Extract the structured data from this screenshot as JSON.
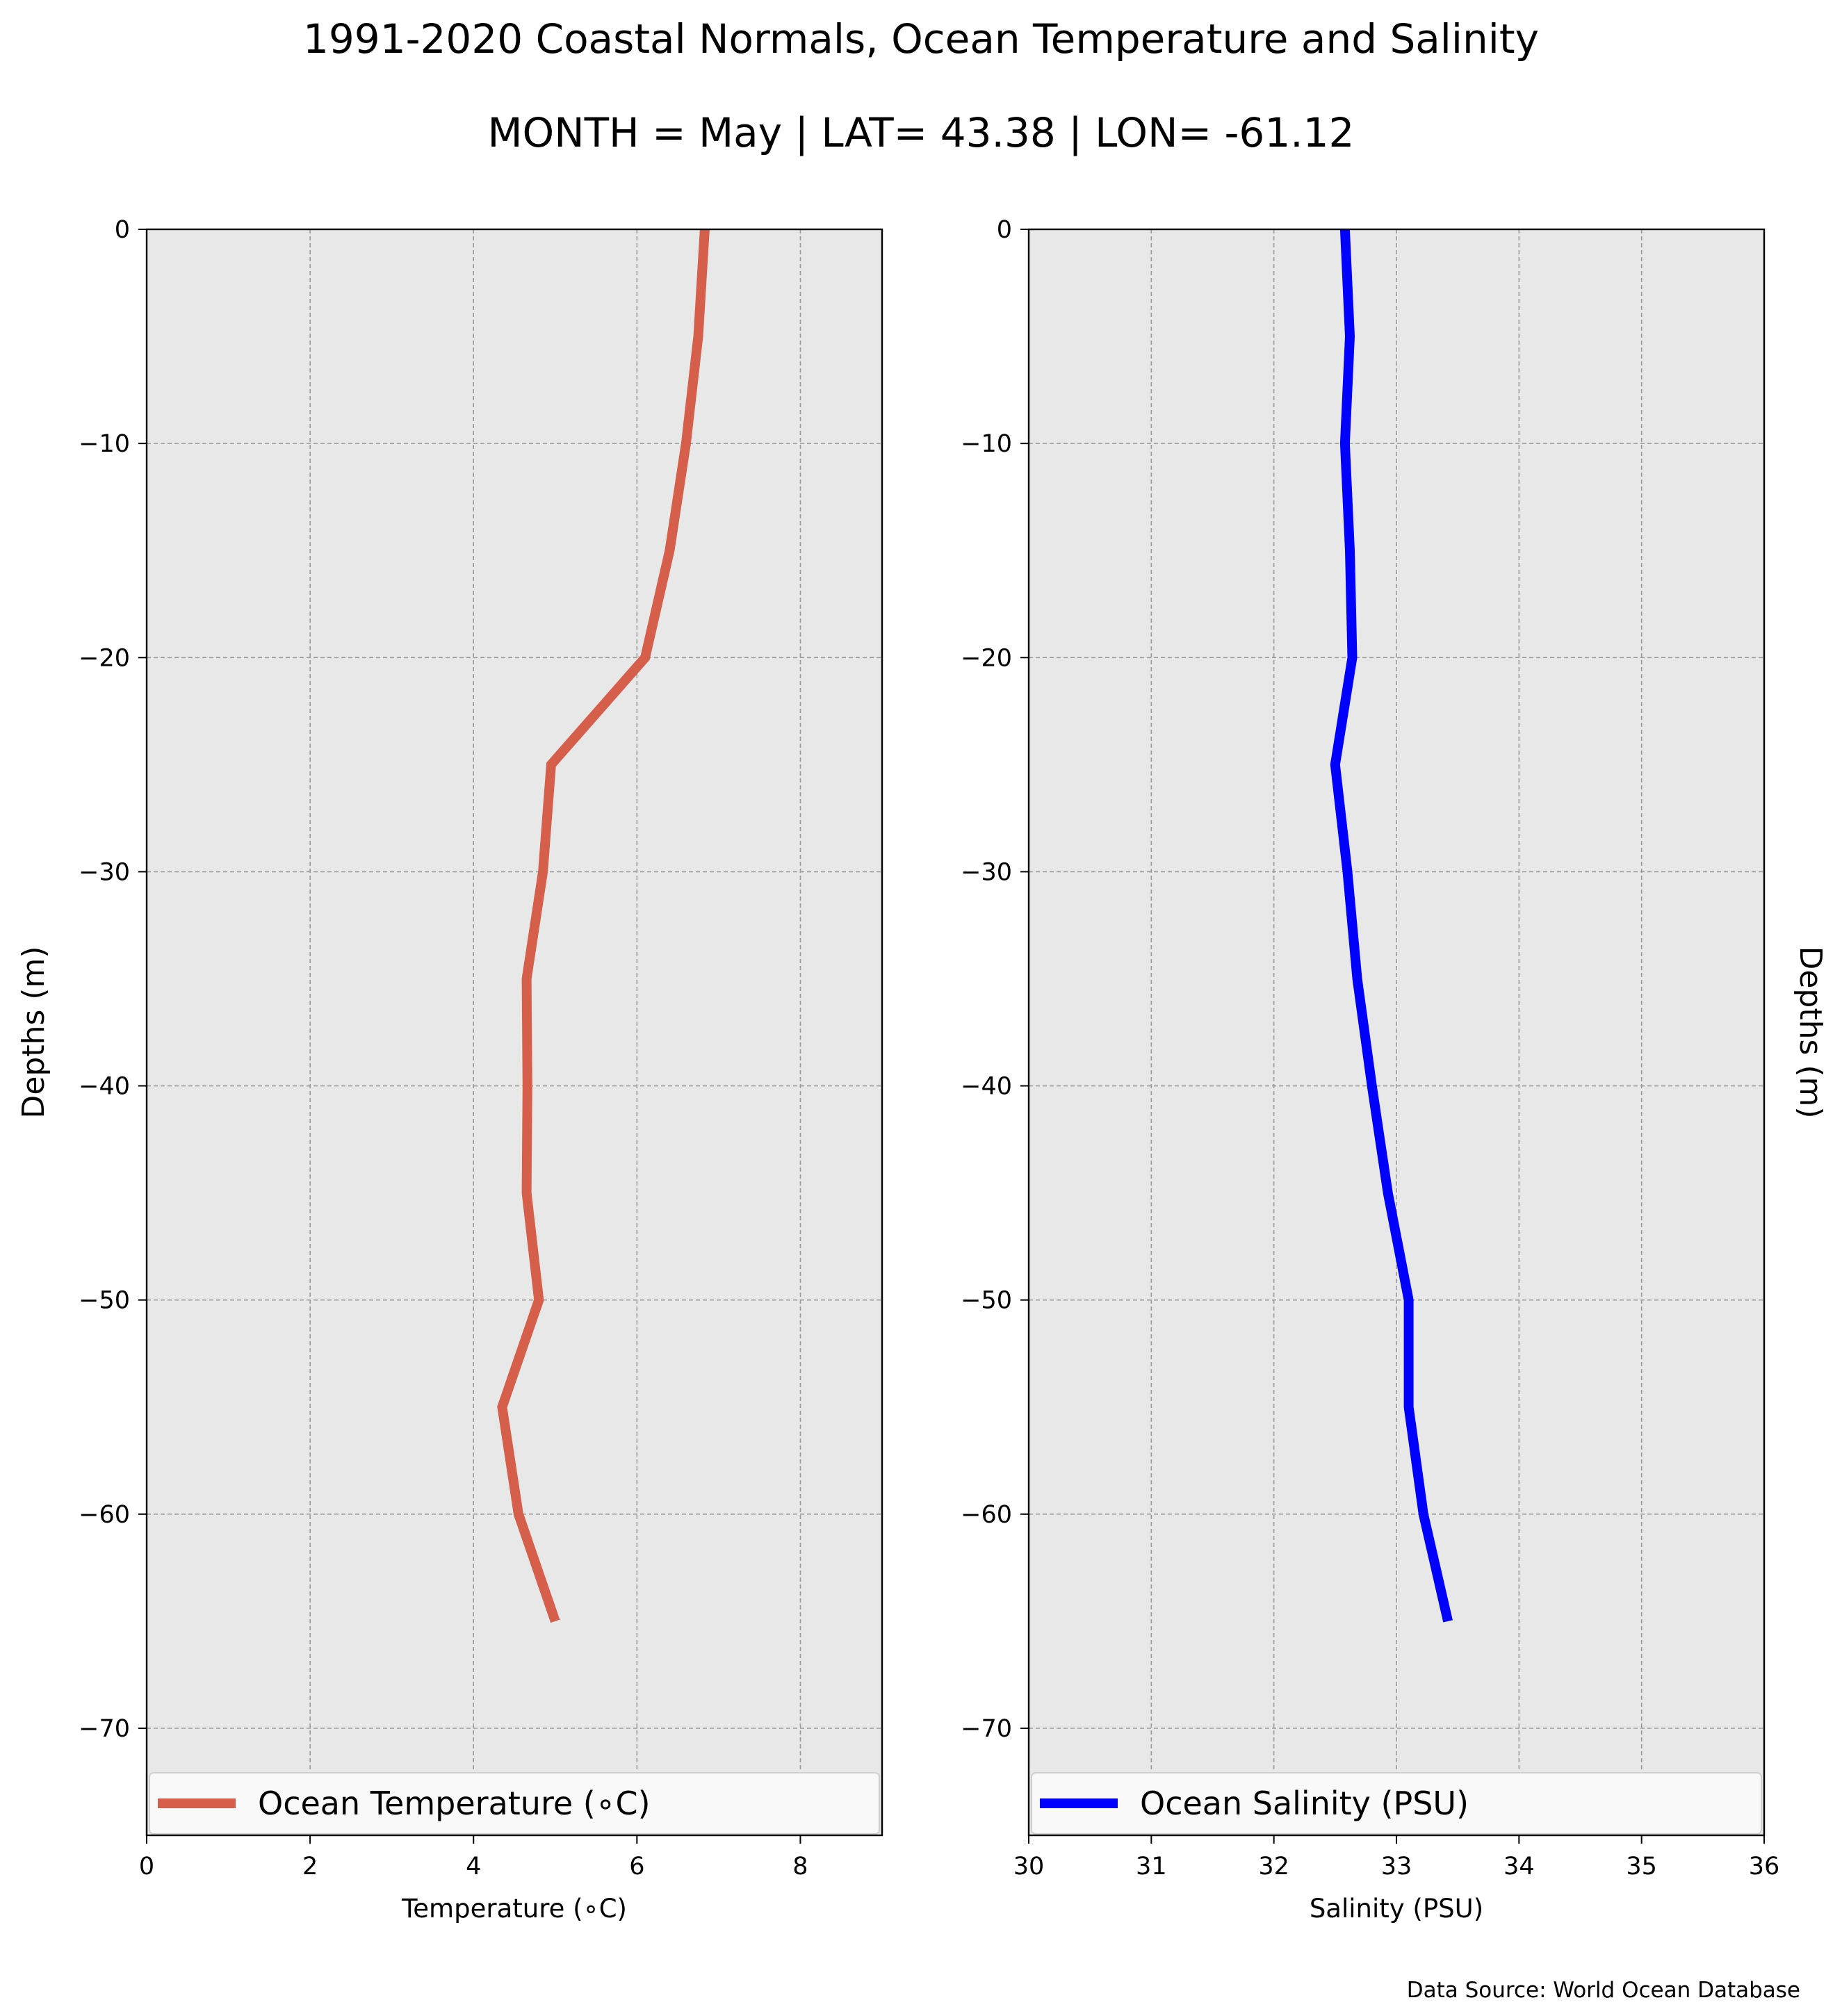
{
  "figure": {
    "title_line1": "1991-2020 Coastal Normals, Ocean Temperature and Salinity",
    "title_line2": "MONTH = May | LAT= 43.38 | LON= -61.12",
    "source": "Data Source: World Ocean Database"
  },
  "chart_data": [
    {
      "type": "line",
      "xlabel": "Temperature (∘C)",
      "ylabel": "Depths (m)",
      "ylabel_side": "left",
      "xlim": [
        0,
        9
      ],
      "ylim": [
        -75,
        0
      ],
      "xticks": [
        0,
        2,
        4,
        6,
        8
      ],
      "yticks": [
        0,
        -10,
        -20,
        -30,
        -40,
        -50,
        -60,
        -70
      ],
      "grid": true,
      "legend_position": "bottom",
      "series": [
        {
          "name": "Ocean Temperature (∘C)",
          "color": "#d65f4c",
          "x": [
            6.83,
            6.75,
            6.6,
            6.4,
            6.1,
            4.95,
            4.85,
            4.65,
            4.66,
            4.65,
            4.8,
            4.35,
            4.55,
            5.0
          ],
          "y": [
            0,
            -5,
            -10,
            -15,
            -20,
            -25,
            -30,
            -35,
            -40,
            -45,
            -50,
            -55,
            -60,
            -65
          ]
        }
      ]
    },
    {
      "type": "line",
      "xlabel": "Salinity (PSU)",
      "ylabel": "Depths (m)",
      "ylabel_side": "right",
      "xlim": [
        30,
        36
      ],
      "ylim": [
        -75,
        0
      ],
      "xticks": [
        30,
        31,
        32,
        33,
        34,
        35,
        36
      ],
      "yticks": [
        0,
        -10,
        -20,
        -30,
        -40,
        -50,
        -60,
        -70
      ],
      "grid": true,
      "legend_position": "bottom",
      "series": [
        {
          "name": "Ocean Salinity (PSU)",
          "color": "#0000ff",
          "x": [
            32.58,
            32.62,
            32.58,
            32.62,
            32.64,
            32.5,
            32.6,
            32.68,
            32.8,
            32.93,
            33.1,
            33.1,
            33.22,
            33.42
          ],
          "y": [
            0,
            -5,
            -10,
            -15,
            -20,
            -25,
            -30,
            -35,
            -40,
            -45,
            -50,
            -55,
            -60,
            -65
          ]
        }
      ]
    }
  ]
}
